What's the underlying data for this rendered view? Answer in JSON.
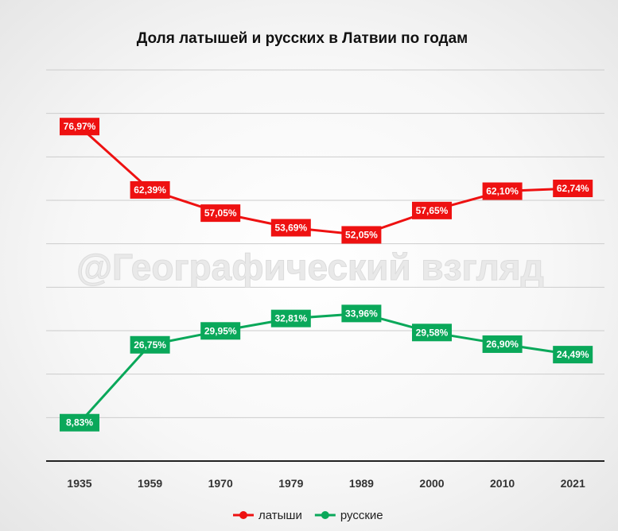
{
  "chart_data": {
    "type": "line",
    "title": "Доля латышей и русских в Латвии по годам",
    "categories": [
      "1935",
      "1959",
      "1970",
      "1979",
      "1989",
      "2000",
      "2010",
      "2021"
    ],
    "series": [
      {
        "name": "латыши",
        "color": "#ee1111",
        "values": [
          76.97,
          62.39,
          57.05,
          53.69,
          52.05,
          57.65,
          62.1,
          62.74
        ],
        "labels": [
          "76,97%",
          "62,39%",
          "57,05%",
          "53,69%",
          "52,05%",
          "57,65%",
          "62,10%",
          "62,74%"
        ]
      },
      {
        "name": "русские",
        "color": "#0aa85a",
        "values": [
          8.83,
          26.75,
          29.95,
          32.81,
          33.96,
          29.58,
          26.9,
          24.49
        ],
        "labels": [
          "8,83%",
          "26,75%",
          "29,95%",
          "32,81%",
          "33,96%",
          "29,58%",
          "26,90%",
          "24,49%"
        ]
      }
    ],
    "ylim": [
      0,
      90
    ],
    "grid": true,
    "legend_position": "bottom-center",
    "xlabel": "",
    "ylabel": ""
  },
  "watermark": "@Географический взгляд"
}
